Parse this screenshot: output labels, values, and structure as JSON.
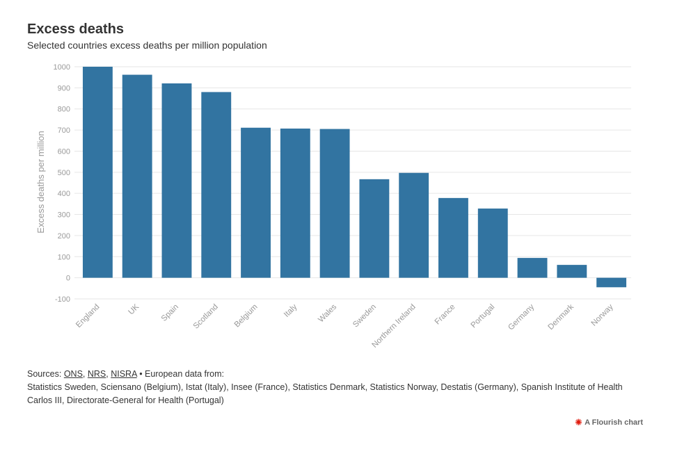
{
  "header": {
    "title": "Excess deaths",
    "subtitle": "Selected countries excess deaths per million population"
  },
  "chart_data": {
    "type": "bar",
    "title": "Excess deaths",
    "subtitle": "Selected countries excess deaths per million population",
    "xlabel": "",
    "ylabel": "Excess deaths per million",
    "ylim": [
      -100,
      1000
    ],
    "yticks": [
      -100,
      0,
      100,
      200,
      300,
      400,
      500,
      600,
      700,
      800,
      900,
      1000
    ],
    "grid": true,
    "bar_color": "#3274a1",
    "categories": [
      "England",
      "UK",
      "Spain",
      "Scotland",
      "Belgium",
      "Italy",
      "Wales",
      "Sweden",
      "Northern Ireland",
      "France",
      "Portugal",
      "Germany",
      "Denmark",
      "Norway"
    ],
    "values": [
      1000,
      962,
      921,
      880,
      711,
      707,
      705,
      467,
      497,
      378,
      328,
      94,
      61,
      -45
    ]
  },
  "footer": {
    "sources_prefix": "Sources: ",
    "link_ons": "ONS",
    "sep1": ", ",
    "link_nrs": "NRS",
    "sep2": ", ",
    "link_nisra": "NISRA",
    "european_intro": " • European data from:",
    "european_sources": "Statistics Sweden, Sciensano (Belgium), Istat (Italy), Insee (France), Statistics Denmark, Statistics Norway, Destatis (Germany), Spanish Institute of Health Carlos III, Directorate-General for Health (Portugal)",
    "credit": "A Flourish chart"
  }
}
